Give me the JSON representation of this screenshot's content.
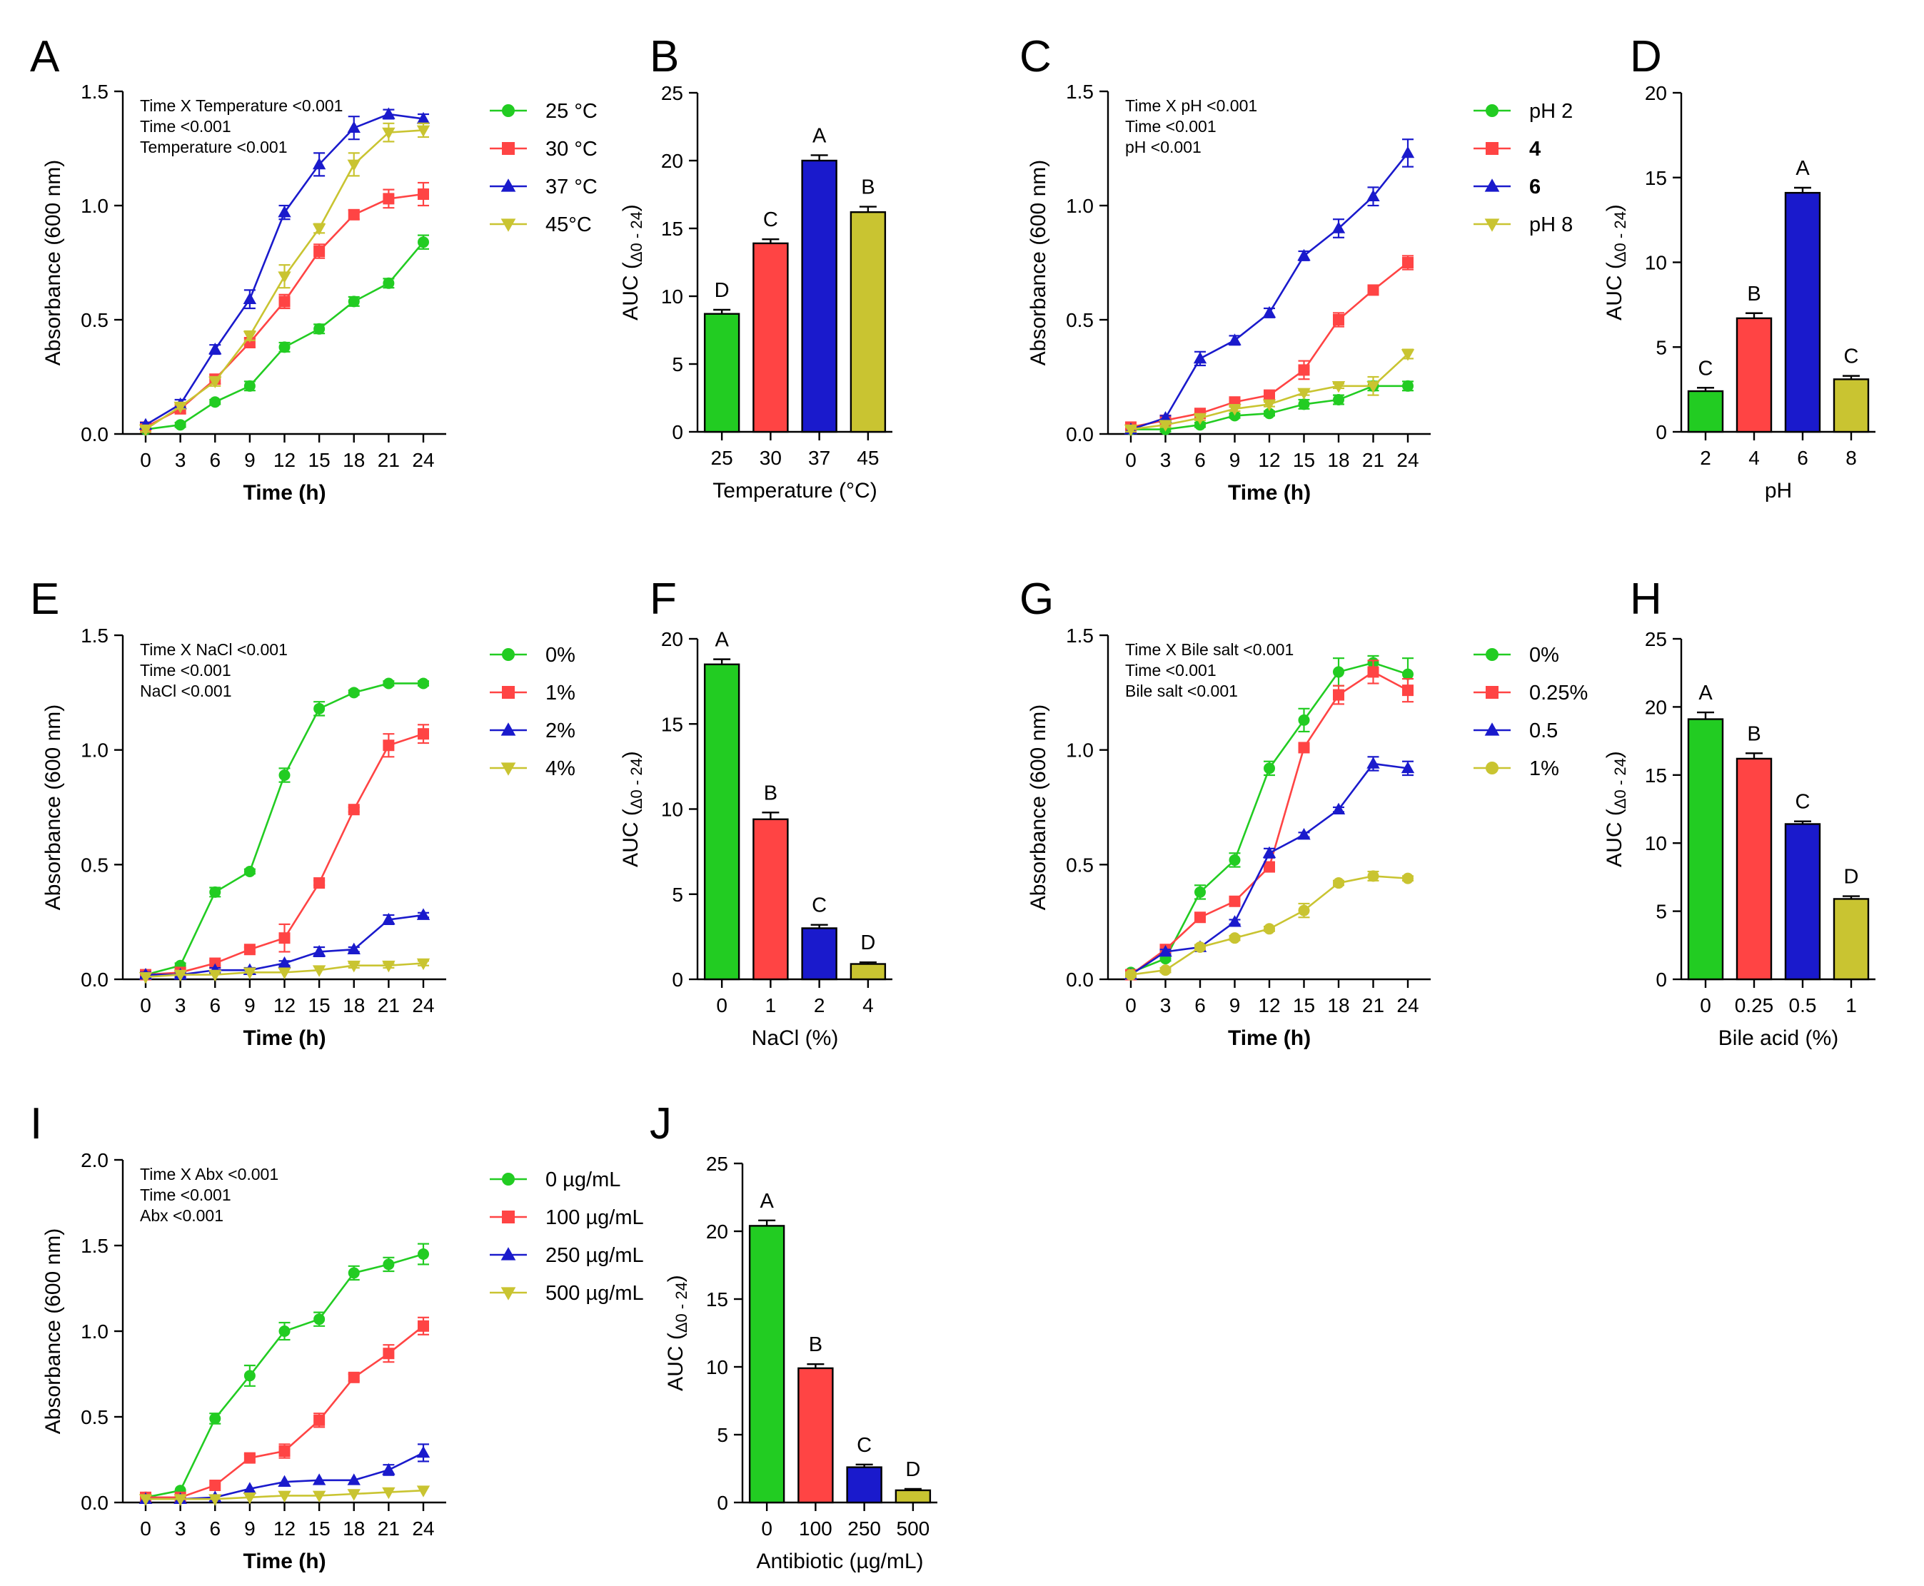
{
  "chart_data": [
    {
      "panel": "A",
      "type": "line",
      "x": [
        0,
        3,
        6,
        9,
        12,
        15,
        18,
        21,
        24
      ],
      "xlabel": "Time (h)",
      "ylabel": "Absorbance (600 nm)",
      "ylim": [
        0,
        1.5
      ],
      "yticks": [
        "0.0",
        "0.5",
        "1.0",
        "1.5"
      ],
      "stats": [
        "Time X Temperature <0.001",
        "Time <0.001",
        "Temperature <0.001"
      ],
      "series": [
        {
          "name": "25 °C",
          "color": "#22cc22",
          "marker": "circle",
          "values": [
            0.02,
            0.04,
            0.14,
            0.21,
            0.38,
            0.46,
            0.58,
            0.66,
            0.84
          ],
          "errors": [
            0.01,
            0.01,
            0.01,
            0.02,
            0.02,
            0.02,
            0.02,
            0.02,
            0.03
          ]
        },
        {
          "name": "30 °C",
          "color": "#ff4444",
          "marker": "square",
          "values": [
            0.03,
            0.11,
            0.24,
            0.4,
            0.58,
            0.8,
            0.96,
            1.03,
            1.05
          ],
          "errors": [
            0.01,
            0.02,
            0.02,
            0.02,
            0.03,
            0.03,
            0.02,
            0.04,
            0.05
          ]
        },
        {
          "name": "37 °C",
          "color": "#1a1acc",
          "marker": "triangle",
          "values": [
            0.04,
            0.13,
            0.37,
            0.59,
            0.97,
            1.18,
            1.34,
            1.4,
            1.38
          ],
          "errors": [
            0.01,
            0.02,
            0.02,
            0.04,
            0.03,
            0.05,
            0.05,
            0.02,
            0.02
          ]
        },
        {
          "name": "45°C",
          "color": "#c9c431",
          "marker": "triangle-down",
          "values": [
            0.02,
            0.12,
            0.23,
            0.43,
            0.69,
            0.9,
            1.18,
            1.32,
            1.33
          ],
          "errors": [
            0.01,
            0.01,
            0.02,
            0.02,
            0.05,
            0.02,
            0.05,
            0.04,
            0.03
          ]
        }
      ]
    },
    {
      "panel": "B",
      "type": "bar",
      "categories": [
        "25",
        "30",
        "37",
        "45"
      ],
      "values": [
        8.7,
        13.9,
        20.0,
        16.2
      ],
      "errors": [
        0.3,
        0.3,
        0.4,
        0.4
      ],
      "group_labels": [
        "D",
        "C",
        "A",
        "B"
      ],
      "colors": [
        "#22cc22",
        "#ff4444",
        "#1a1acc",
        "#c9c431"
      ],
      "xlabel": "Temperature (°C)",
      "ylabel_main": "AUC (",
      "ylabel_sub": "Δ0 - 24",
      "ylabel_end": ")",
      "ylim": [
        0,
        25
      ],
      "yticks": [
        "0",
        "5",
        "10",
        "15",
        "20",
        "25"
      ]
    },
    {
      "panel": "C",
      "type": "line",
      "x": [
        0,
        3,
        6,
        9,
        12,
        15,
        18,
        21,
        24
      ],
      "xlabel": "Time (h)",
      "ylabel": "Absorbance (600 nm)",
      "ylim": [
        0,
        1.5
      ],
      "yticks": [
        "0.0",
        "0.5",
        "1.0",
        "1.5"
      ],
      "stats": [
        "Time X pH <0.001",
        "Time <0.001",
        "pH <0.001"
      ],
      "series": [
        {
          "name": "pH 2",
          "color": "#22cc22",
          "marker": "circle",
          "values": [
            0.02,
            0.02,
            0.04,
            0.08,
            0.09,
            0.13,
            0.15,
            0.21,
            0.21
          ],
          "errors": [
            0.01,
            0.01,
            0.01,
            0.01,
            0.01,
            0.02,
            0.02,
            0.02,
            0.02
          ]
        },
        {
          "name": "4",
          "bold": true,
          "color": "#ff4444",
          "marker": "square",
          "values": [
            0.03,
            0.06,
            0.09,
            0.14,
            0.17,
            0.28,
            0.5,
            0.63,
            0.75
          ],
          "errors": [
            0.01,
            0.01,
            0.01,
            0.01,
            0.02,
            0.04,
            0.03,
            0.02,
            0.03
          ]
        },
        {
          "name": "6",
          "bold": true,
          "color": "#1a1acc",
          "marker": "triangle",
          "values": [
            0.02,
            0.07,
            0.33,
            0.41,
            0.53,
            0.78,
            0.9,
            1.04,
            1.23
          ],
          "errors": [
            0.01,
            0.01,
            0.03,
            0.02,
            0.02,
            0.02,
            0.04,
            0.04,
            0.06
          ]
        },
        {
          "name": "pH 8",
          "color": "#c9c431",
          "marker": "triangle-down",
          "values": [
            0.02,
            0.04,
            0.07,
            0.11,
            0.13,
            0.18,
            0.21,
            0.21,
            0.35
          ],
          "errors": [
            0.01,
            0.01,
            0.01,
            0.01,
            0.01,
            0.01,
            0.01,
            0.04,
            0.02
          ]
        }
      ]
    },
    {
      "panel": "D",
      "type": "bar",
      "categories": [
        "2",
        "4",
        "6",
        "8"
      ],
      "values": [
        2.4,
        6.7,
        14.1,
        3.1
      ],
      "errors": [
        0.2,
        0.3,
        0.3,
        0.2
      ],
      "group_labels": [
        "C",
        "B",
        "A",
        "C"
      ],
      "colors": [
        "#22cc22",
        "#ff4444",
        "#1a1acc",
        "#c9c431"
      ],
      "xlabel": "pH",
      "ylabel_main": "AUC (",
      "ylabel_sub": "Δ0 - 24",
      "ylabel_end": ")",
      "ylim": [
        0,
        20
      ],
      "yticks": [
        "0",
        "5",
        "10",
        "15",
        "20"
      ]
    },
    {
      "panel": "E",
      "type": "line",
      "x": [
        0,
        3,
        6,
        9,
        12,
        15,
        18,
        21,
        24
      ],
      "xlabel": "Time (h)",
      "ylabel": "Absorbance (600 nm)",
      "ylim": [
        0,
        1.5
      ],
      "yticks": [
        "0.0",
        "0.5",
        "1.0",
        "1.5"
      ],
      "stats": [
        "Time X NaCl <0.001",
        "Time <0.001",
        "NaCl <0.001"
      ],
      "series": [
        {
          "name": "0%",
          "color": "#22cc22",
          "marker": "circle",
          "values": [
            0.02,
            0.06,
            0.38,
            0.47,
            0.89,
            1.18,
            1.25,
            1.29,
            1.29
          ],
          "errors": [
            0.01,
            0.01,
            0.02,
            0.01,
            0.03,
            0.03,
            0.01,
            0.01,
            0.01
          ]
        },
        {
          "name": "1%",
          "color": "#ff4444",
          "marker": "square",
          "values": [
            0.02,
            0.03,
            0.07,
            0.13,
            0.18,
            0.42,
            0.74,
            1.02,
            1.07
          ],
          "errors": [
            0.01,
            0.01,
            0.01,
            0.01,
            0.06,
            0.01,
            0.01,
            0.05,
            0.04
          ]
        },
        {
          "name": "2%",
          "color": "#1a1acc",
          "marker": "triangle",
          "values": [
            0.02,
            0.02,
            0.04,
            0.04,
            0.07,
            0.12,
            0.13,
            0.26,
            0.28
          ],
          "errors": [
            0.01,
            0.01,
            0.01,
            0.01,
            0.01,
            0.02,
            0.01,
            0.02,
            0.01
          ]
        },
        {
          "name": "4%",
          "color": "#c9c431",
          "marker": "triangle-down",
          "values": [
            0.01,
            0.02,
            0.02,
            0.03,
            0.03,
            0.04,
            0.06,
            0.06,
            0.07
          ],
          "errors": [
            0.005,
            0.005,
            0.005,
            0.005,
            0.005,
            0.005,
            0.01,
            0.01,
            0.01
          ]
        }
      ]
    },
    {
      "panel": "F",
      "type": "bar",
      "categories": [
        "0",
        "1",
        "2",
        "4"
      ],
      "values": [
        18.5,
        9.4,
        3.0,
        0.9
      ],
      "errors": [
        0.3,
        0.4,
        0.2,
        0.1
      ],
      "group_labels": [
        "A",
        "B",
        "C",
        "D"
      ],
      "colors": [
        "#22cc22",
        "#ff4444",
        "#1a1acc",
        "#c9c431"
      ],
      "xlabel": "NaCl (%)",
      "ylabel_main": "AUC (",
      "ylabel_sub": "Δ0 - 24",
      "ylabel_end": ")",
      "ylim": [
        0,
        20
      ],
      "yticks": [
        "0",
        "5",
        "10",
        "15",
        "20"
      ]
    },
    {
      "panel": "G",
      "type": "line",
      "x": [
        0,
        3,
        6,
        9,
        12,
        15,
        18,
        21,
        24
      ],
      "xlabel": "Time (h)",
      "ylabel": "Absorbance (600 nm)",
      "ylim": [
        0,
        1.5
      ],
      "yticks": [
        "0.0",
        "0.5",
        "1.0",
        "1.5"
      ],
      "stats": [
        "Time X Bile salt <0.001",
        "Time <0.001",
        "Bile salt <0.001"
      ],
      "series": [
        {
          "name": "0%",
          "color": "#22cc22",
          "marker": "circle",
          "values": [
            0.03,
            0.09,
            0.38,
            0.52,
            0.92,
            1.13,
            1.34,
            1.38,
            1.33
          ],
          "errors": [
            0.01,
            0.01,
            0.03,
            0.03,
            0.03,
            0.05,
            0.06,
            0.03,
            0.07
          ]
        },
        {
          "name": "0.25%",
          "color": "#ff4444",
          "marker": "square",
          "values": [
            0.02,
            0.13,
            0.27,
            0.34,
            0.49,
            1.01,
            1.24,
            1.34,
            1.26
          ],
          "errors": [
            0.01,
            0.01,
            0.01,
            0.02,
            0.02,
            0.02,
            0.04,
            0.05,
            0.05
          ]
        },
        {
          "name": "0.5",
          "color": "#1a1acc",
          "marker": "triangle",
          "values": [
            0.02,
            0.12,
            0.14,
            0.25,
            0.55,
            0.63,
            0.74,
            0.94,
            0.92
          ],
          "errors": [
            0.01,
            0.01,
            0.01,
            0.01,
            0.02,
            0.01,
            0.01,
            0.03,
            0.03
          ]
        },
        {
          "name": "1%",
          "color": "#c9c431",
          "marker": "circle",
          "values": [
            0.02,
            0.04,
            0.14,
            0.18,
            0.22,
            0.3,
            0.42,
            0.45,
            0.44
          ],
          "errors": [
            0.01,
            0.01,
            0.01,
            0.01,
            0.01,
            0.03,
            0.01,
            0.02,
            0.01
          ]
        }
      ]
    },
    {
      "panel": "H",
      "type": "bar",
      "categories": [
        "0",
        "0.25",
        "0.5",
        "1"
      ],
      "values": [
        19.1,
        16.2,
        11.4,
        5.9
      ],
      "errors": [
        0.5,
        0.4,
        0.2,
        0.2
      ],
      "group_labels": [
        "A",
        "B",
        "C",
        "D"
      ],
      "colors": [
        "#22cc22",
        "#ff4444",
        "#1a1acc",
        "#c9c431"
      ],
      "xlabel": "Bile acid (%)",
      "ylabel_main": "AUC (",
      "ylabel_sub": "Δ0 - 24",
      "ylabel_end": ")",
      "ylim": [
        0,
        25
      ],
      "yticks": [
        "0",
        "5",
        "10",
        "15",
        "20",
        "25"
      ]
    },
    {
      "panel": "I",
      "type": "line",
      "x": [
        0,
        3,
        6,
        9,
        12,
        15,
        18,
        21,
        24
      ],
      "xlabel": "Time (h)",
      "ylabel": "Absorbance (600 nm)",
      "ylim": [
        0,
        2.0
      ],
      "yticks": [
        "0.0",
        "0.5",
        "1.0",
        "1.5",
        "2.0"
      ],
      "stats": [
        "Time X Abx <0.001",
        "Time <0.001",
        "Abx <0.001"
      ],
      "series": [
        {
          "name": "0 µg/mL",
          "color": "#22cc22",
          "marker": "circle",
          "values": [
            0.03,
            0.07,
            0.49,
            0.74,
            1.0,
            1.07,
            1.34,
            1.39,
            1.45
          ],
          "errors": [
            0.01,
            0.01,
            0.03,
            0.06,
            0.05,
            0.04,
            0.04,
            0.04,
            0.06
          ]
        },
        {
          "name": "100 µg/mL",
          "color": "#ff4444",
          "marker": "square",
          "values": [
            0.03,
            0.03,
            0.1,
            0.26,
            0.3,
            0.48,
            0.73,
            0.87,
            1.03
          ],
          "errors": [
            0.01,
            0.01,
            0.01,
            0.02,
            0.04,
            0.04,
            0.02,
            0.05,
            0.05
          ]
        },
        {
          "name": "250 µg/mL",
          "color": "#1a1acc",
          "marker": "triangle",
          "values": [
            0.02,
            0.02,
            0.03,
            0.08,
            0.12,
            0.13,
            0.13,
            0.19,
            0.29
          ],
          "errors": [
            0.005,
            0.005,
            0.01,
            0.01,
            0.01,
            0.01,
            0.01,
            0.03,
            0.05
          ]
        },
        {
          "name": "500 µg/mL",
          "color": "#c9c431",
          "marker": "triangle-down",
          "values": [
            0.02,
            0.02,
            0.02,
            0.03,
            0.04,
            0.04,
            0.05,
            0.06,
            0.07
          ],
          "errors": [
            0.005,
            0.005,
            0.005,
            0.005,
            0.005,
            0.005,
            0.005,
            0.005,
            0.005
          ]
        }
      ]
    },
    {
      "panel": "J",
      "type": "bar",
      "categories": [
        "0",
        "100",
        "250",
        "500"
      ],
      "values": [
        20.4,
        9.9,
        2.6,
        0.9
      ],
      "errors": [
        0.4,
        0.3,
        0.2,
        0.1
      ],
      "group_labels": [
        "A",
        "B",
        "C",
        "D"
      ],
      "colors": [
        "#22cc22",
        "#ff4444",
        "#1a1acc",
        "#c9c431"
      ],
      "xlabel": "Antibiotic (µg/mL)",
      "ylabel_main": "AUC (",
      "ylabel_sub": "Δ0 - 24",
      "ylabel_end": ")",
      "ylim": [
        0,
        25
      ],
      "yticks": [
        "0",
        "5",
        "10",
        "15",
        "20",
        "25"
      ]
    }
  ]
}
